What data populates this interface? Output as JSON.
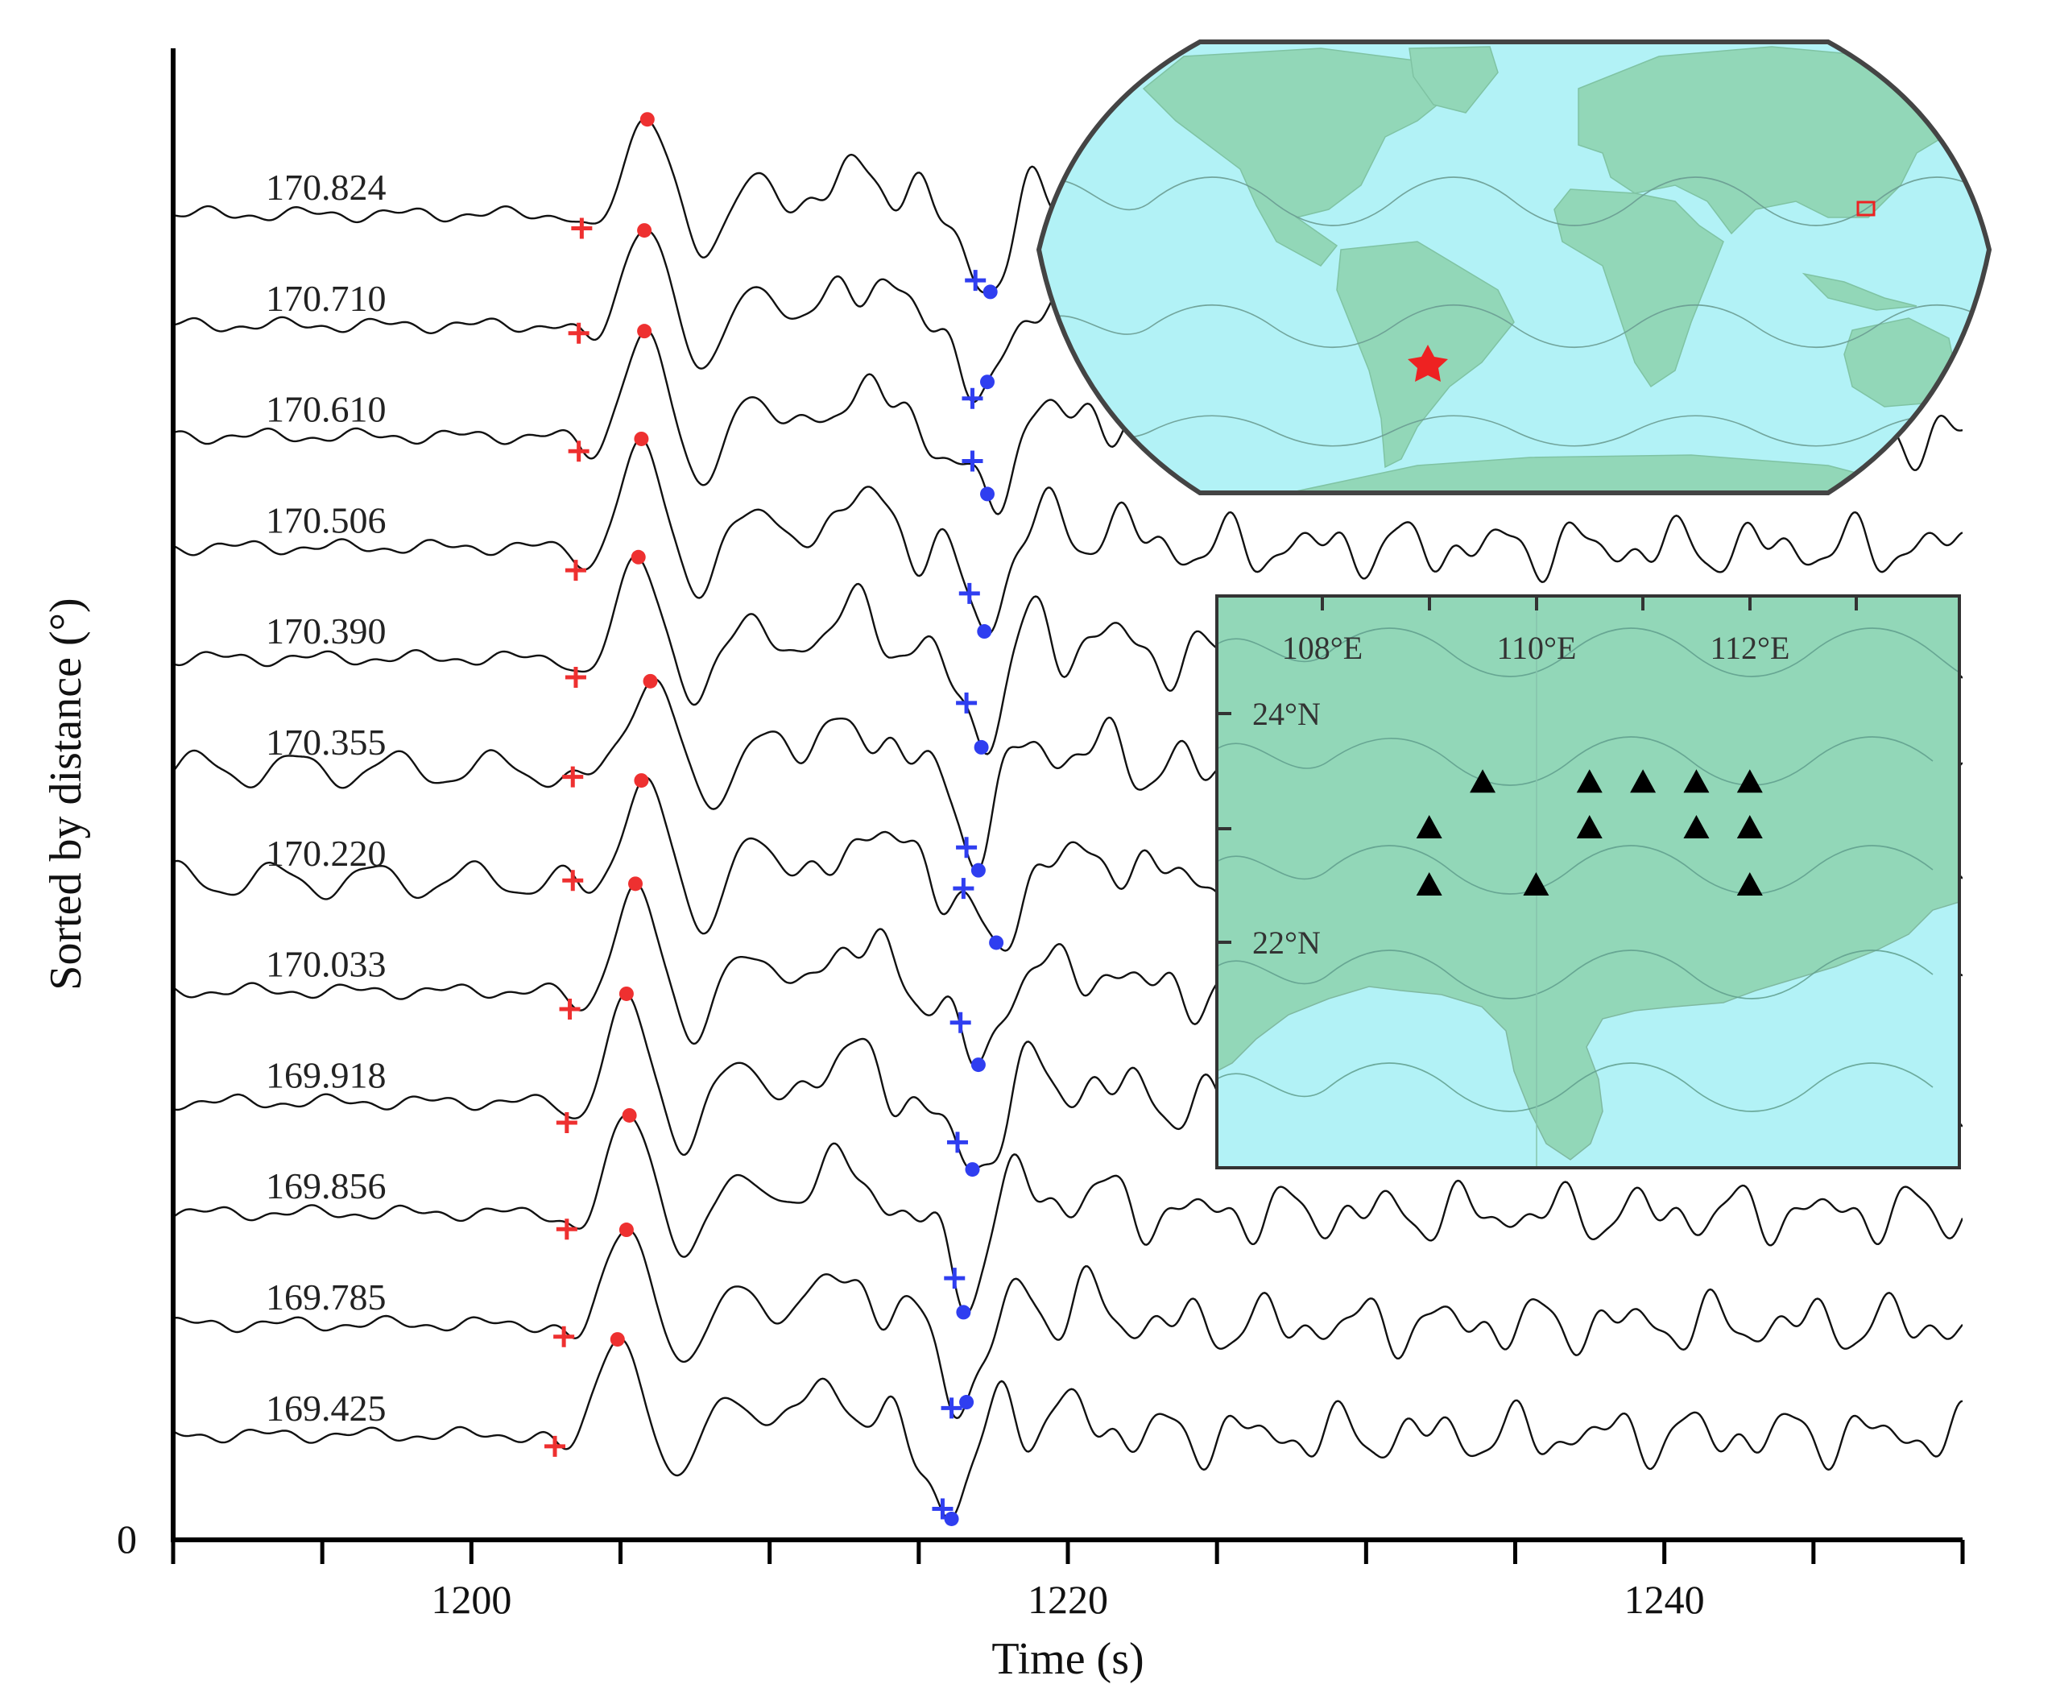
{
  "chart_data": {
    "type": "line",
    "xlabel": "Time (s)",
    "ylabel": "Sorted by distance (°)",
    "xlim": [
      1190,
      1250
    ],
    "x_ticks": [
      1200,
      1220,
      1240
    ],
    "y_ticks": [
      "0"
    ],
    "grid": false,
    "traces": [
      {
        "distance": "170.824",
        "red_pick": 1203.7,
        "red_peak": 1205.9,
        "blue_pick": 1216.9,
        "blue_trough": 1217.4
      },
      {
        "distance": "170.710",
        "red_pick": 1203.6,
        "red_peak": 1205.8,
        "blue_pick": 1216.8,
        "blue_trough": 1217.3
      },
      {
        "distance": "170.610",
        "red_pick": 1203.6,
        "red_peak": 1205.8,
        "blue_pick": 1216.8,
        "blue_trough": 1217.3
      },
      {
        "distance": "170.506",
        "red_pick": 1203.5,
        "red_peak": 1205.7,
        "blue_pick": 1216.7,
        "blue_trough": 1217.2
      },
      {
        "distance": "170.390",
        "red_pick": 1203.5,
        "red_peak": 1205.6,
        "blue_pick": 1216.6,
        "blue_trough": 1217.1
      },
      {
        "distance": "170.355",
        "red_pick": 1203.4,
        "red_peak": 1206.0,
        "blue_pick": 1216.6,
        "blue_trough": 1217.0
      },
      {
        "distance": "170.220",
        "red_pick": 1203.4,
        "red_peak": 1205.7,
        "blue_pick": 1216.5,
        "blue_trough": 1217.6
      },
      {
        "distance": "170.033",
        "red_pick": 1203.3,
        "red_peak": 1205.5,
        "blue_pick": 1216.4,
        "blue_trough": 1217.0
      },
      {
        "distance": "169.918",
        "red_pick": 1203.2,
        "red_peak": 1205.2,
        "blue_pick": 1216.3,
        "blue_trough": 1216.8
      },
      {
        "distance": "169.856",
        "red_pick": 1203.2,
        "red_peak": 1205.3,
        "blue_pick": 1216.2,
        "blue_trough": 1216.5
      },
      {
        "distance": "169.785",
        "red_pick": 1203.1,
        "red_peak": 1205.2,
        "blue_pick": 1216.1,
        "blue_trough": 1216.6
      },
      {
        "distance": "169.425",
        "red_pick": 1202.8,
        "red_peak": 1204.9,
        "blue_pick": 1215.8,
        "blue_trough": 1216.1
      }
    ],
    "world_inset": {
      "event_marker": "red-star",
      "study_region_marker": "red-rectangle"
    },
    "regional_inset": {
      "lon_labels": [
        "108°E",
        "110°E",
        "112°E"
      ],
      "lat_labels": [
        "24°N",
        "22°N"
      ],
      "stations": [
        {
          "lon": 109.5,
          "lat": 23.4
        },
        {
          "lon": 110.5,
          "lat": 23.4
        },
        {
          "lon": 111.0,
          "lat": 23.4
        },
        {
          "lon": 111.5,
          "lat": 23.4
        },
        {
          "lon": 112.0,
          "lat": 23.4
        },
        {
          "lon": 109.0,
          "lat": 23.0
        },
        {
          "lon": 110.5,
          "lat": 23.0
        },
        {
          "lon": 111.5,
          "lat": 23.0
        },
        {
          "lon": 112.0,
          "lat": 23.0
        },
        {
          "lon": 109.0,
          "lat": 22.5
        },
        {
          "lon": 110.0,
          "lat": 22.5
        },
        {
          "lon": 112.0,
          "lat": 22.5
        }
      ]
    },
    "colors": {
      "trace": "#111111",
      "red_marker": "#ee3030",
      "blue_marker": "#2f3ef0",
      "ocean": "#b2f2f6",
      "land": "#92d7b8"
    }
  }
}
